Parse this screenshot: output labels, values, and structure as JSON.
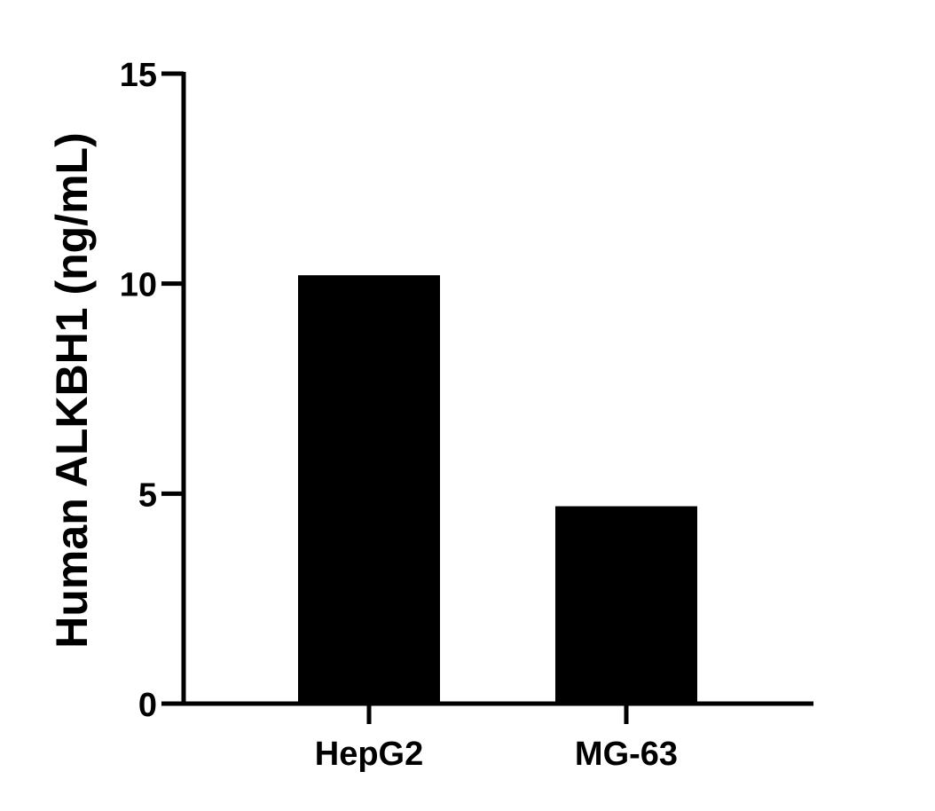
{
  "chart_data": {
    "type": "bar",
    "title": "",
    "xlabel": "",
    "ylabel": "Human ALKBH1 (ng/mL)",
    "categories": [
      "HepG2",
      "MG-63"
    ],
    "values": [
      10.2,
      4.7
    ],
    "ylim": [
      0,
      15
    ],
    "yticks": [
      0,
      5,
      10,
      15
    ],
    "ytick_labels": [
      "0",
      "5",
      "10",
      "15"
    ],
    "grid": false,
    "legend": "none",
    "bar_color": "#000000",
    "axis_color": "#000000"
  }
}
